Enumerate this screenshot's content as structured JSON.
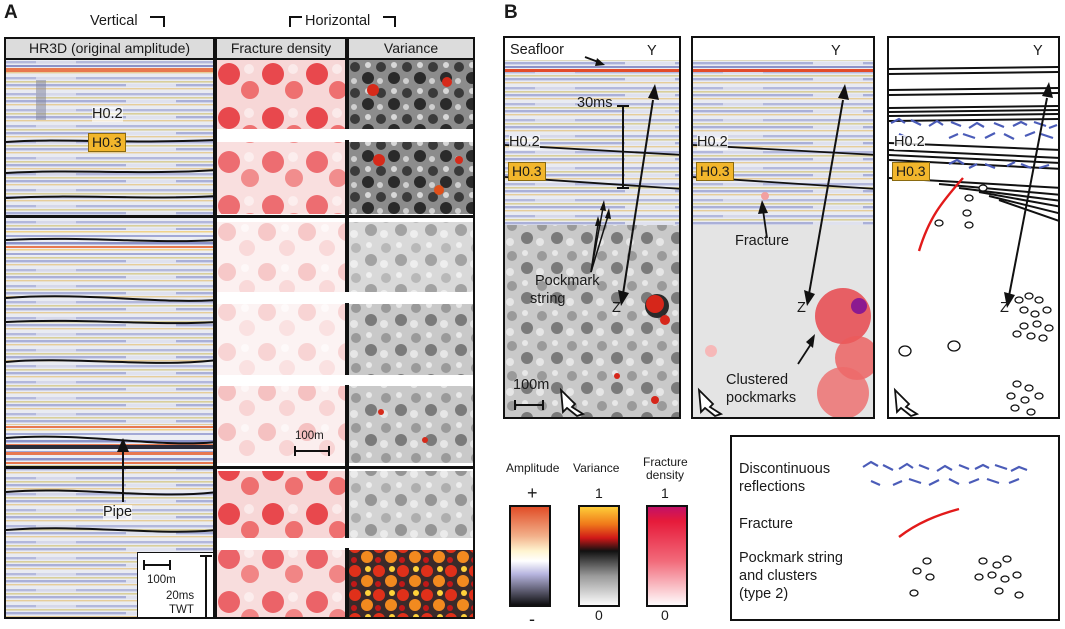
{
  "panel_a": {
    "letter": "A",
    "vertical_label": "Vertical",
    "horizontal_label": "Horizontal",
    "col1_header": "HR3D (original amplitude)",
    "col2_header": "Fracture density",
    "col3_header": "Variance",
    "h02": "H0.2",
    "h03": "H0.3",
    "pipe": "Pipe",
    "scale_h": "100m",
    "scale_v_1": "20ms",
    "scale_v_2": "TWT",
    "scale_map": "100m"
  },
  "panel_b": {
    "letter": "B",
    "seafloor": "Seafloor",
    "y1": "Y",
    "y2": "Y",
    "y3": "Y",
    "z1": "Z",
    "z2": "Z",
    "z3": "Z",
    "ms30": "30ms",
    "h02_1": "H0.2",
    "h03_1": "H0.3",
    "h02_2": "H0.2",
    "h03_2": "H0.3",
    "h02_3": "H0.2",
    "h03_3": "H0.3",
    "pockmark_1": "Pockmark",
    "pockmark_2": "string",
    "fracture": "Fracture",
    "clustered_1": "Clustered",
    "clustered_2": "pockmarks",
    "scale": "100m"
  },
  "colorbars": {
    "amplitude_label": "Amplitude",
    "variance_label": "Variance",
    "fracture_label_1": "Fracture",
    "fracture_label_2": "density",
    "amp_top": "+",
    "amp_bottom": "-",
    "var_top": "1",
    "var_bottom": "0",
    "frac_top": "1",
    "frac_bottom": "0"
  },
  "legend": {
    "item1_line1": "Discontinuous",
    "item1_line2": "reflections",
    "item2": "Fracture",
    "item3_line1": "Pockmark string",
    "item3_line2": "and clusters",
    "item3_line3": "(type 2)"
  },
  "colors": {
    "horizon_tag": "#f2b62c",
    "fracture_red": "#e21a1a",
    "discontinuous_blue": "#4b5cb8",
    "amplitude_red": "#e24b2b",
    "amplitude_blue": "#9aa0d6"
  }
}
